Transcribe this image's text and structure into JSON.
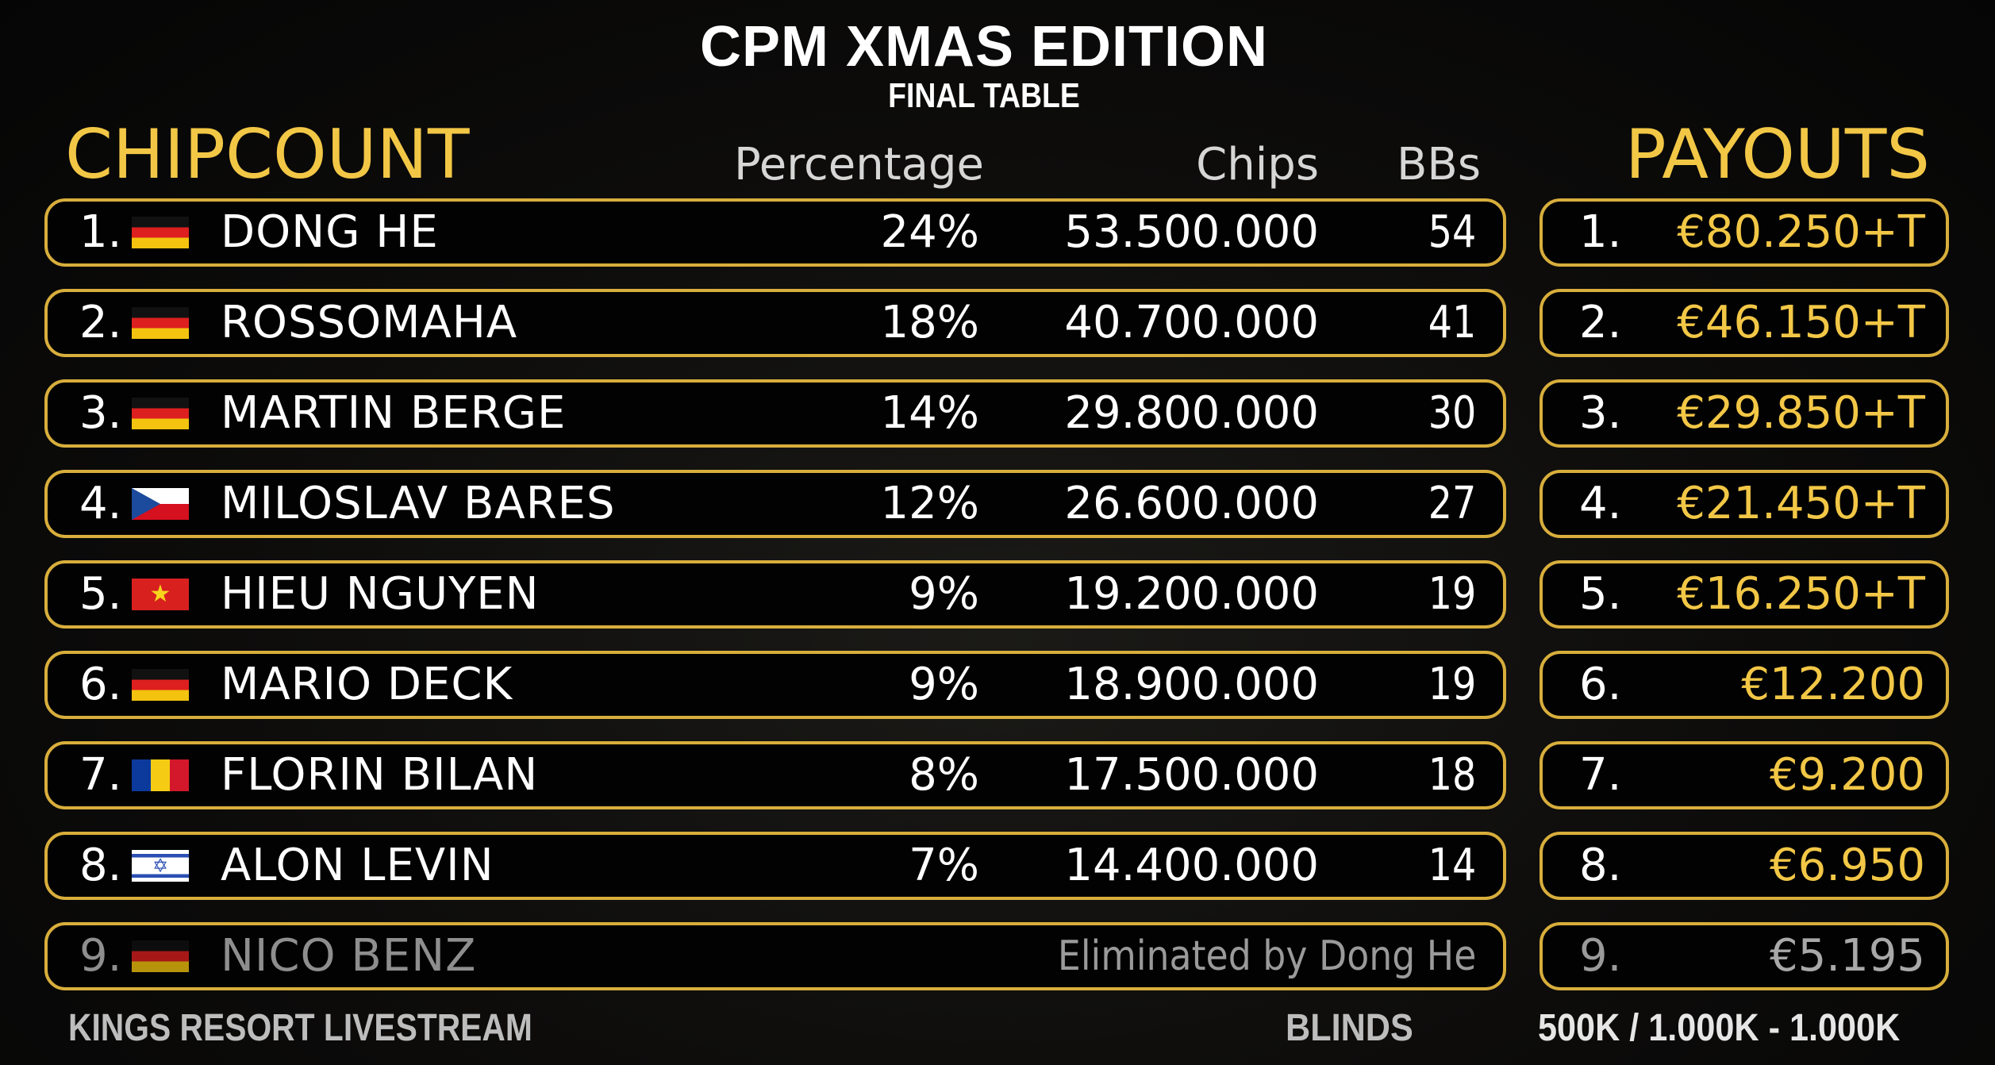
{
  "header": {
    "title": "CPM XMAS EDITION",
    "subtitle": "FINAL TABLE"
  },
  "chipcount": {
    "heading": "CHIPCOUNT",
    "columns": {
      "percentage": "Percentage",
      "chips": "Chips",
      "bbs": "BBs"
    },
    "rows": [
      {
        "rank": "1.",
        "flag": "germany-flag",
        "name": "DONG HE",
        "percentage": "24%",
        "chips": "53.500.000",
        "bbs": "54"
      },
      {
        "rank": "2.",
        "flag": "germany-flag",
        "name": "ROSSOMAHA",
        "percentage": "18%",
        "chips": "40.700.000",
        "bbs": "41"
      },
      {
        "rank": "3.",
        "flag": "germany-flag",
        "name": "MARTIN BERGE",
        "percentage": "14%",
        "chips": "29.800.000",
        "bbs": "30"
      },
      {
        "rank": "4.",
        "flag": "czech-flag",
        "name": "MILOSLAV BARES",
        "percentage": "12%",
        "chips": "26.600.000",
        "bbs": "27"
      },
      {
        "rank": "5.",
        "flag": "vietnam-flag",
        "name": "HIEU NGUYEN",
        "percentage": "9%",
        "chips": "19.200.000",
        "bbs": "19"
      },
      {
        "rank": "6.",
        "flag": "germany-flag",
        "name": "MARIO DECK",
        "percentage": "9%",
        "chips": "18.900.000",
        "bbs": "19"
      },
      {
        "rank": "7.",
        "flag": "romania-flag",
        "name": "FLORIN BILAN",
        "percentage": "8%",
        "chips": "17.500.000",
        "bbs": "18"
      },
      {
        "rank": "8.",
        "flag": "israel-flag",
        "name": "ALON LEVIN",
        "percentage": "7%",
        "chips": "14.400.000",
        "bbs": "14"
      }
    ],
    "eliminated": {
      "rank": "9.",
      "flag": "germany-flag",
      "name": "NICO BENZ",
      "note": "Eliminated by Dong He"
    }
  },
  "payouts": {
    "heading": "PAYOUTS",
    "rows": [
      {
        "rank": "1.",
        "amount": "€80.250+T"
      },
      {
        "rank": "2.",
        "amount": "€46.150+T"
      },
      {
        "rank": "3.",
        "amount": "€29.850+T"
      },
      {
        "rank": "4.",
        "amount": "€21.450+T"
      },
      {
        "rank": "5.",
        "amount": "€16.250+T"
      },
      {
        "rank": "6.",
        "amount": "€12.200"
      },
      {
        "rank": "7.",
        "amount": "€9.200"
      },
      {
        "rank": "8.",
        "amount": "€6.950"
      },
      {
        "rank": "9.",
        "amount": "€5.195"
      }
    ]
  },
  "footer": {
    "left": "KINGS RESORT LIVESTREAM",
    "blinds_label": "BLINDS",
    "blinds_value": "500K / 1.000K - 1.000K"
  },
  "colors": {
    "gold": "#f2c746",
    "border": "#d8ae3c",
    "eliminated_text": "#8e8e8e"
  }
}
